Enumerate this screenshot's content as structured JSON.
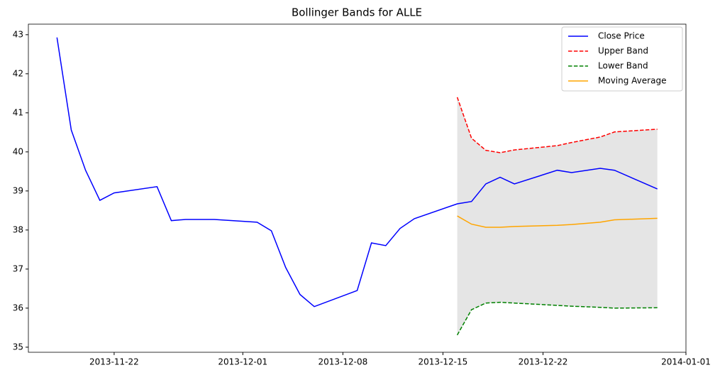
{
  "chart_data": {
    "type": "line",
    "title": "Bollinger Bands for ALLE",
    "x": [
      "2013-11-18",
      "2013-11-19",
      "2013-11-20",
      "2013-11-21",
      "2013-11-22",
      "2013-11-25",
      "2013-11-26",
      "2013-11-27",
      "2013-11-29",
      "2013-12-02",
      "2013-12-03",
      "2013-12-04",
      "2013-12-05",
      "2013-12-06",
      "2013-12-09",
      "2013-12-10",
      "2013-12-11",
      "2013-12-12",
      "2013-12-13",
      "2013-12-16",
      "2013-12-17",
      "2013-12-18",
      "2013-12-19",
      "2013-12-20",
      "2013-12-23",
      "2013-12-24",
      "2013-12-26",
      "2013-12-27",
      "2013-12-30"
    ],
    "series": [
      {
        "name": "Close Price",
        "color": "#0000ff",
        "linestyle": "solid",
        "values": [
          42.93,
          40.56,
          39.53,
          38.76,
          38.95,
          39.11,
          38.24,
          38.27,
          38.27,
          38.2,
          37.98,
          37.04,
          36.35,
          36.04,
          36.45,
          37.67,
          37.6,
          38.04,
          38.29,
          38.67,
          38.73,
          39.18,
          39.35,
          39.18,
          39.53,
          39.47,
          39.58,
          39.53,
          39.05
        ]
      },
      {
        "name": "Upper Band",
        "color": "#ff0000",
        "linestyle": "dashed",
        "values": [
          null,
          null,
          null,
          null,
          null,
          null,
          null,
          null,
          null,
          null,
          null,
          null,
          null,
          null,
          null,
          null,
          null,
          null,
          null,
          41.4,
          40.35,
          40.04,
          39.98,
          40.05,
          40.16,
          40.24,
          40.38,
          40.51,
          40.58
        ]
      },
      {
        "name": "Lower Band",
        "color": "#008000",
        "linestyle": "dashed",
        "values": [
          null,
          null,
          null,
          null,
          null,
          null,
          null,
          null,
          null,
          null,
          null,
          null,
          null,
          null,
          null,
          null,
          null,
          null,
          null,
          35.31,
          35.96,
          36.13,
          36.15,
          36.13,
          36.07,
          36.05,
          36.02,
          36.0,
          36.01
        ]
      },
      {
        "name": "Moving Average",
        "color": "#ffa500",
        "linestyle": "solid",
        "values": [
          null,
          null,
          null,
          null,
          null,
          null,
          null,
          null,
          null,
          null,
          null,
          null,
          null,
          null,
          null,
          null,
          null,
          null,
          null,
          38.36,
          38.15,
          38.07,
          38.07,
          38.09,
          38.12,
          38.14,
          38.2,
          38.26,
          38.3
        ]
      }
    ],
    "band_fill_color": "#e5e5e5",
    "xlim": [
      "2013-11-16",
      "2014-01-01"
    ],
    "xticks": [
      "2013-11-22",
      "2013-12-01",
      "2013-12-08",
      "2013-12-15",
      "2013-12-22",
      "2014-01-01"
    ],
    "ylim": [
      34.87,
      43.27
    ],
    "yticks": [
      35,
      36,
      37,
      38,
      39,
      40,
      41,
      42,
      43
    ],
    "legend": "upper right",
    "grid": false
  }
}
